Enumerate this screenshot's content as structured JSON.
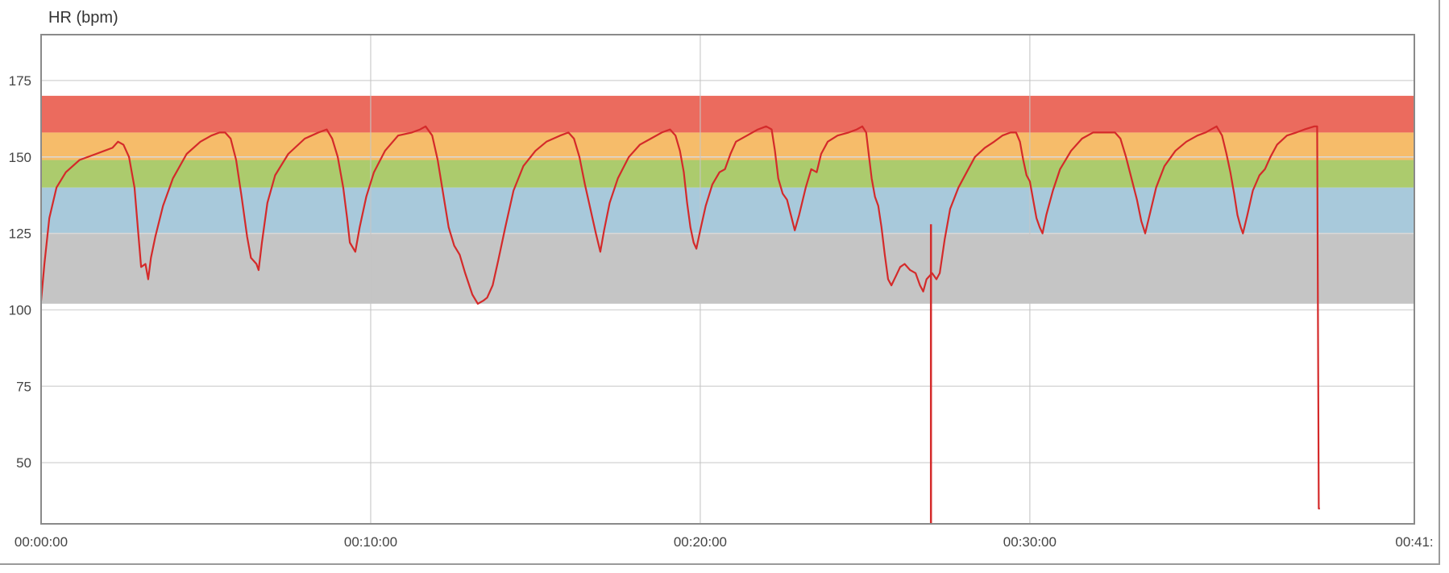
{
  "chart_data": {
    "type": "line",
    "title": "",
    "ylabel": "HR (bpm)",
    "xlabel": "",
    "x_unit": "seconds",
    "xlim": [
      0,
      2500
    ],
    "ylim": [
      30,
      190
    ],
    "yticks": [
      50,
      75,
      100,
      125,
      150,
      175
    ],
    "xticks": [
      {
        "value": 0,
        "label": "00:00:00"
      },
      {
        "value": 600,
        "label": "00:10:00"
      },
      {
        "value": 1200,
        "label": "00:20:00"
      },
      {
        "value": 1800,
        "label": "00:30:00"
      },
      {
        "value": 2500,
        "label": "00:41:"
      }
    ],
    "grid": true,
    "zones": [
      {
        "name": "zone-1",
        "from": 102,
        "to": 125,
        "color": "#c2c2c2"
      },
      {
        "name": "zone-2",
        "from": 125,
        "to": 140,
        "color": "#a3c6d9"
      },
      {
        "name": "zone-3",
        "from": 140,
        "to": 149,
        "color": "#a8c865"
      },
      {
        "name": "zone-4",
        "from": 149,
        "to": 158,
        "color": "#f5b862"
      },
      {
        "name": "zone-5",
        "from": 158,
        "to": 170,
        "color": "#ea6355"
      }
    ],
    "series": [
      {
        "color": "#d42a2a",
        "points": [
          [
            0,
            103
          ],
          [
            6,
            115
          ],
          [
            15,
            130
          ],
          [
            28,
            140
          ],
          [
            45,
            145
          ],
          [
            70,
            149
          ],
          [
            100,
            151
          ],
          [
            130,
            153
          ],
          [
            140,
            155
          ],
          [
            150,
            154
          ],
          [
            160,
            150
          ],
          [
            170,
            140
          ],
          [
            177,
            125
          ],
          [
            182,
            114
          ],
          [
            190,
            115
          ],
          [
            195,
            110
          ],
          [
            200,
            117
          ],
          [
            208,
            124
          ],
          [
            222,
            134
          ],
          [
            240,
            143
          ],
          [
            265,
            151
          ],
          [
            290,
            155
          ],
          [
            310,
            157
          ],
          [
            325,
            158
          ],
          [
            335,
            158
          ],
          [
            345,
            156
          ],
          [
            355,
            149
          ],
          [
            365,
            137
          ],
          [
            375,
            124
          ],
          [
            382,
            117
          ],
          [
            392,
            115
          ],
          [
            396,
            113
          ],
          [
            402,
            122
          ],
          [
            412,
            135
          ],
          [
            426,
            144
          ],
          [
            450,
            151
          ],
          [
            480,
            156
          ],
          [
            505,
            158
          ],
          [
            520,
            159
          ],
          [
            530,
            156
          ],
          [
            540,
            150
          ],
          [
            550,
            140
          ],
          [
            557,
            130
          ],
          [
            562,
            122
          ],
          [
            572,
            119
          ],
          [
            580,
            127
          ],
          [
            592,
            137
          ],
          [
            606,
            145
          ],
          [
            626,
            152
          ],
          [
            650,
            157
          ],
          [
            675,
            158
          ],
          [
            690,
            159
          ],
          [
            700,
            160
          ],
          [
            712,
            157
          ],
          [
            722,
            149
          ],
          [
            732,
            138
          ],
          [
            742,
            127
          ],
          [
            752,
            121
          ],
          [
            762,
            118
          ],
          [
            772,
            112
          ],
          [
            785,
            105
          ],
          [
            795,
            102
          ],
          [
            805,
            103
          ],
          [
            812,
            104
          ],
          [
            822,
            108
          ],
          [
            832,
            116
          ],
          [
            845,
            127
          ],
          [
            860,
            139
          ],
          [
            878,
            147
          ],
          [
            900,
            152
          ],
          [
            920,
            155
          ],
          [
            945,
            157
          ],
          [
            960,
            158
          ],
          [
            970,
            156
          ],
          [
            980,
            150
          ],
          [
            990,
            141
          ],
          [
            1000,
            133
          ],
          [
            1010,
            125
          ],
          [
            1018,
            119
          ],
          [
            1025,
            126
          ],
          [
            1035,
            135
          ],
          [
            1050,
            143
          ],
          [
            1070,
            150
          ],
          [
            1090,
            154
          ],
          [
            1110,
            156
          ],
          [
            1130,
            158
          ],
          [
            1145,
            159
          ],
          [
            1155,
            157
          ],
          [
            1163,
            152
          ],
          [
            1170,
            145
          ],
          [
            1176,
            135
          ],
          [
            1182,
            127
          ],
          [
            1188,
            122
          ],
          [
            1193,
            120
          ],
          [
            1200,
            126
          ],
          [
            1210,
            134
          ],
          [
            1222,
            141
          ],
          [
            1235,
            145
          ],
          [
            1245,
            146
          ],
          [
            1255,
            151
          ],
          [
            1265,
            155
          ],
          [
            1285,
            157
          ],
          [
            1305,
            159
          ],
          [
            1320,
            160
          ],
          [
            1330,
            159
          ],
          [
            1336,
            152
          ],
          [
            1342,
            143
          ],
          [
            1350,
            138
          ],
          [
            1358,
            136
          ],
          [
            1365,
            131
          ],
          [
            1372,
            126
          ],
          [
            1380,
            131
          ],
          [
            1392,
            140
          ],
          [
            1402,
            146
          ],
          [
            1412,
            145
          ],
          [
            1420,
            151
          ],
          [
            1432,
            155
          ],
          [
            1450,
            157
          ],
          [
            1470,
            158
          ],
          [
            1485,
            159
          ],
          [
            1495,
            160
          ],
          [
            1502,
            158
          ],
          [
            1506,
            152
          ],
          [
            1512,
            143
          ],
          [
            1518,
            137
          ],
          [
            1524,
            134
          ],
          [
            1530,
            127
          ],
          [
            1536,
            118
          ],
          [
            1542,
            110
          ],
          [
            1548,
            108
          ],
          [
            1556,
            111
          ],
          [
            1564,
            114
          ],
          [
            1572,
            115
          ],
          [
            1582,
            113
          ],
          [
            1592,
            112
          ],
          [
            1600,
            108
          ],
          [
            1606,
            106
          ],
          [
            1612,
            110
          ],
          [
            1622,
            112
          ],
          [
            1630,
            110
          ],
          [
            1636,
            112
          ],
          [
            1645,
            123
          ],
          [
            1655,
            133
          ],
          [
            1670,
            140
          ],
          [
            1685,
            145
          ],
          [
            1700,
            150
          ],
          [
            1718,
            153
          ],
          [
            1735,
            155
          ],
          [
            1750,
            157
          ],
          [
            1765,
            158
          ],
          [
            1775,
            158
          ],
          [
            1782,
            155
          ],
          [
            1788,
            149
          ],
          [
            1794,
            144
          ],
          [
            1800,
            142
          ],
          [
            1806,
            136
          ],
          [
            1812,
            130
          ],
          [
            1818,
            127
          ],
          [
            1823,
            125
          ],
          [
            1830,
            131
          ],
          [
            1842,
            139
          ],
          [
            1855,
            146
          ],
          [
            1875,
            152
          ],
          [
            1895,
            156
          ],
          [
            1915,
            158
          ],
          [
            1940,
            158
          ],
          [
            1955,
            158
          ],
          [
            1965,
            156
          ],
          [
            1975,
            150
          ],
          [
            1985,
            143
          ],
          [
            1995,
            136
          ],
          [
            2003,
            129
          ],
          [
            2010,
            125
          ],
          [
            2018,
            131
          ],
          [
            2030,
            140
          ],
          [
            2045,
            147
          ],
          [
            2065,
            152
          ],
          [
            2085,
            155
          ],
          [
            2105,
            157
          ],
          [
            2120,
            158
          ],
          [
            2130,
            159
          ],
          [
            2140,
            160
          ],
          [
            2150,
            157
          ],
          [
            2158,
            151
          ],
          [
            2165,
            145
          ],
          [
            2172,
            138
          ],
          [
            2178,
            131
          ],
          [
            2184,
            127
          ],
          [
            2188,
            125
          ],
          [
            2196,
            131
          ],
          [
            2206,
            139
          ],
          [
            2218,
            144
          ],
          [
            2228,
            146
          ],
          [
            2238,
            150
          ],
          [
            2250,
            154
          ],
          [
            2268,
            157
          ],
          [
            2285,
            158
          ],
          [
            2300,
            159
          ],
          [
            2318,
            160
          ],
          [
            2323,
            160
          ],
          [
            2326,
            35
          ],
          [
            2328,
            35
          ]
        ]
      }
    ],
    "spikes": [
      {
        "x": 1620,
        "from": 128,
        "to": 30
      }
    ]
  }
}
